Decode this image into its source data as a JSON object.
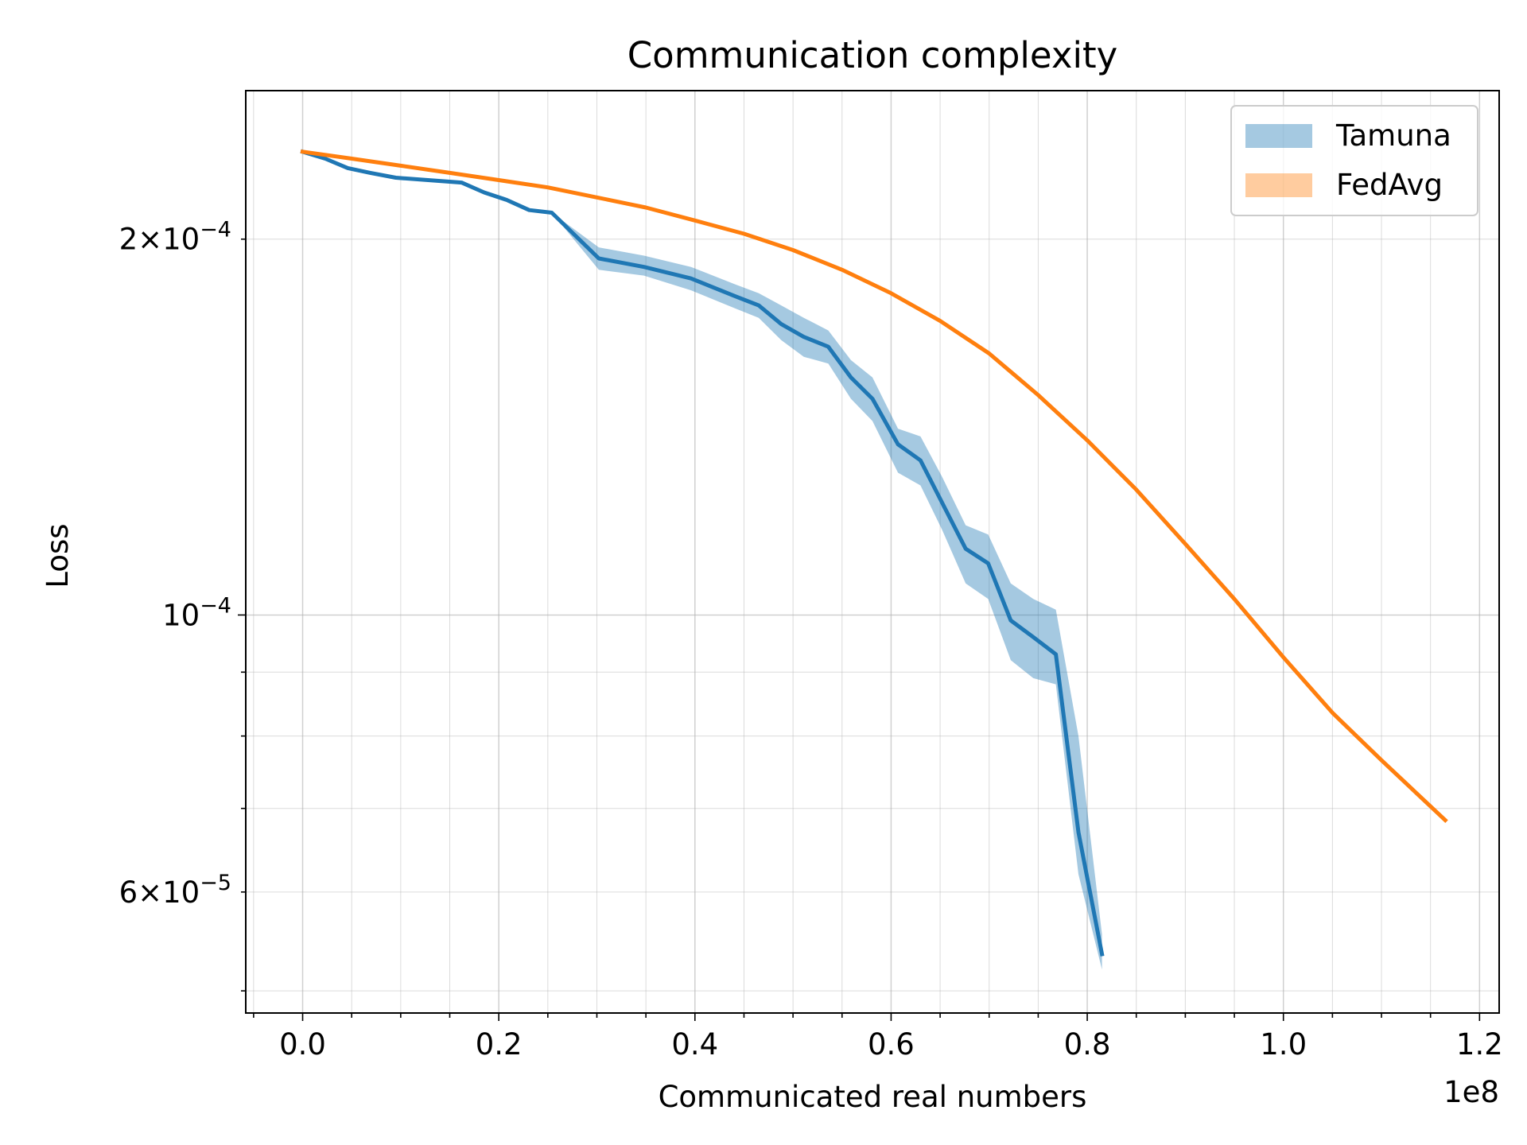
{
  "chart_data": {
    "type": "line",
    "title": "Communication complexity",
    "xlabel": "Communicated real numbers",
    "ylabel": "Loss",
    "x_offset_label": "1e8",
    "xscale": "linear",
    "yscale": "log",
    "xlim": [
      -5800000,
      122000000
    ],
    "ylim": [
      4.8e-05,
      0.000263
    ],
    "grid": "major and minor",
    "legend": "top-right",
    "x_ticks": [
      {
        "value": 0,
        "label": "0.0"
      },
      {
        "value": 20000000,
        "label": "0.2"
      },
      {
        "value": 40000000,
        "label": "0.4"
      },
      {
        "value": 60000000,
        "label": "0.6"
      },
      {
        "value": 80000000,
        "label": "0.8"
      },
      {
        "value": 100000000,
        "label": "1.0"
      },
      {
        "value": 120000000,
        "label": "1.2"
      }
    ],
    "y_ticks": [
      {
        "value": 0.0002,
        "base": "2×10",
        "exp": "−4"
      },
      {
        "value": 0.0001,
        "base": "10",
        "exp": "−4"
      },
      {
        "value": 6e-05,
        "base": "6×10",
        "exp": "−5"
      }
    ],
    "series": [
      {
        "name": "Tamuna",
        "color": "#1f77b4",
        "band_color": "#1f77b4",
        "band_opacity": 0.4,
        "x": [
          0,
          2300000,
          4600000,
          6900000,
          9500000,
          16200000,
          18500000,
          20800000,
          23100000,
          25400000,
          30200000,
          34800000,
          39600000,
          44100000,
          46500000,
          48800000,
          51100000,
          53600000,
          55900000,
          58100000,
          60700000,
          63000000,
          65200000,
          67600000,
          69900000,
          72200000,
          74500000,
          76800000,
          79100000,
          81500000
        ],
        "y": [
          0.000235,
          0.000232,
          0.000228,
          0.000226,
          0.000224,
          0.000222,
          0.000218,
          0.000215,
          0.000211,
          0.00021,
          0.000193,
          0.00019,
          0.000186,
          0.00018,
          0.000177,
          0.000171,
          0.000167,
          0.000164,
          0.000155,
          0.000149,
          0.000137,
          0.000133,
          0.000123,
          0.000113,
          0.00011,
          9.9e-05,
          9.6e-05,
          9.3e-05,
          6.7e-05,
          5.35e-05
        ],
        "y_lower": [
          0.000235,
          0.000232,
          0.000228,
          0.000226,
          0.000224,
          0.000222,
          0.000218,
          0.000215,
          0.000211,
          0.00021,
          0.000189,
          0.000187,
          0.000182,
          0.000176,
          0.000173,
          0.000166,
          0.000161,
          0.000159,
          0.000149,
          0.000143,
          0.00013,
          0.000127,
          0.000117,
          0.000106,
          0.000103,
          9.2e-05,
          8.9e-05,
          8.8e-05,
          6.2e-05,
          5.2e-05
        ],
        "y_upper": [
          0.000235,
          0.000232,
          0.000228,
          0.000226,
          0.000224,
          0.000222,
          0.000218,
          0.000215,
          0.000211,
          0.00021,
          0.000197,
          0.000194,
          0.00019,
          0.000184,
          0.000181,
          0.000177,
          0.000173,
          0.000169,
          0.00016,
          0.000155,
          0.000141,
          0.000139,
          0.000129,
          0.000118,
          0.000116,
          0.000106,
          0.000103,
          0.000101,
          8e-05,
          5.55e-05
        ]
      },
      {
        "name": "FedAvg",
        "color": "#ff7f0e",
        "band_color": "#ff7f0e",
        "band_opacity": 0.4,
        "x": [
          0,
          5000000,
          10000000,
          15000000,
          20000000,
          25000000,
          30000000,
          35000000,
          40000000,
          45000000,
          50000000,
          55000000,
          60000000,
          65000000,
          70000000,
          75000000,
          80000000,
          85000000,
          90000000,
          95000000,
          100000000,
          105000000,
          110000000,
          116500000
        ],
        "y": [
          0.000235,
          0.000232,
          0.000229,
          0.000226,
          0.000223,
          0.00022,
          0.000216,
          0.000212,
          0.000207,
          0.000202,
          0.000196,
          0.000189,
          0.000181,
          0.000172,
          0.000162,
          0.00015,
          0.000138,
          0.000126,
          0.000114,
          0.000103,
          9.25e-05,
          8.35e-05,
          7.65e-05,
          6.85e-05
        ]
      }
    ]
  }
}
